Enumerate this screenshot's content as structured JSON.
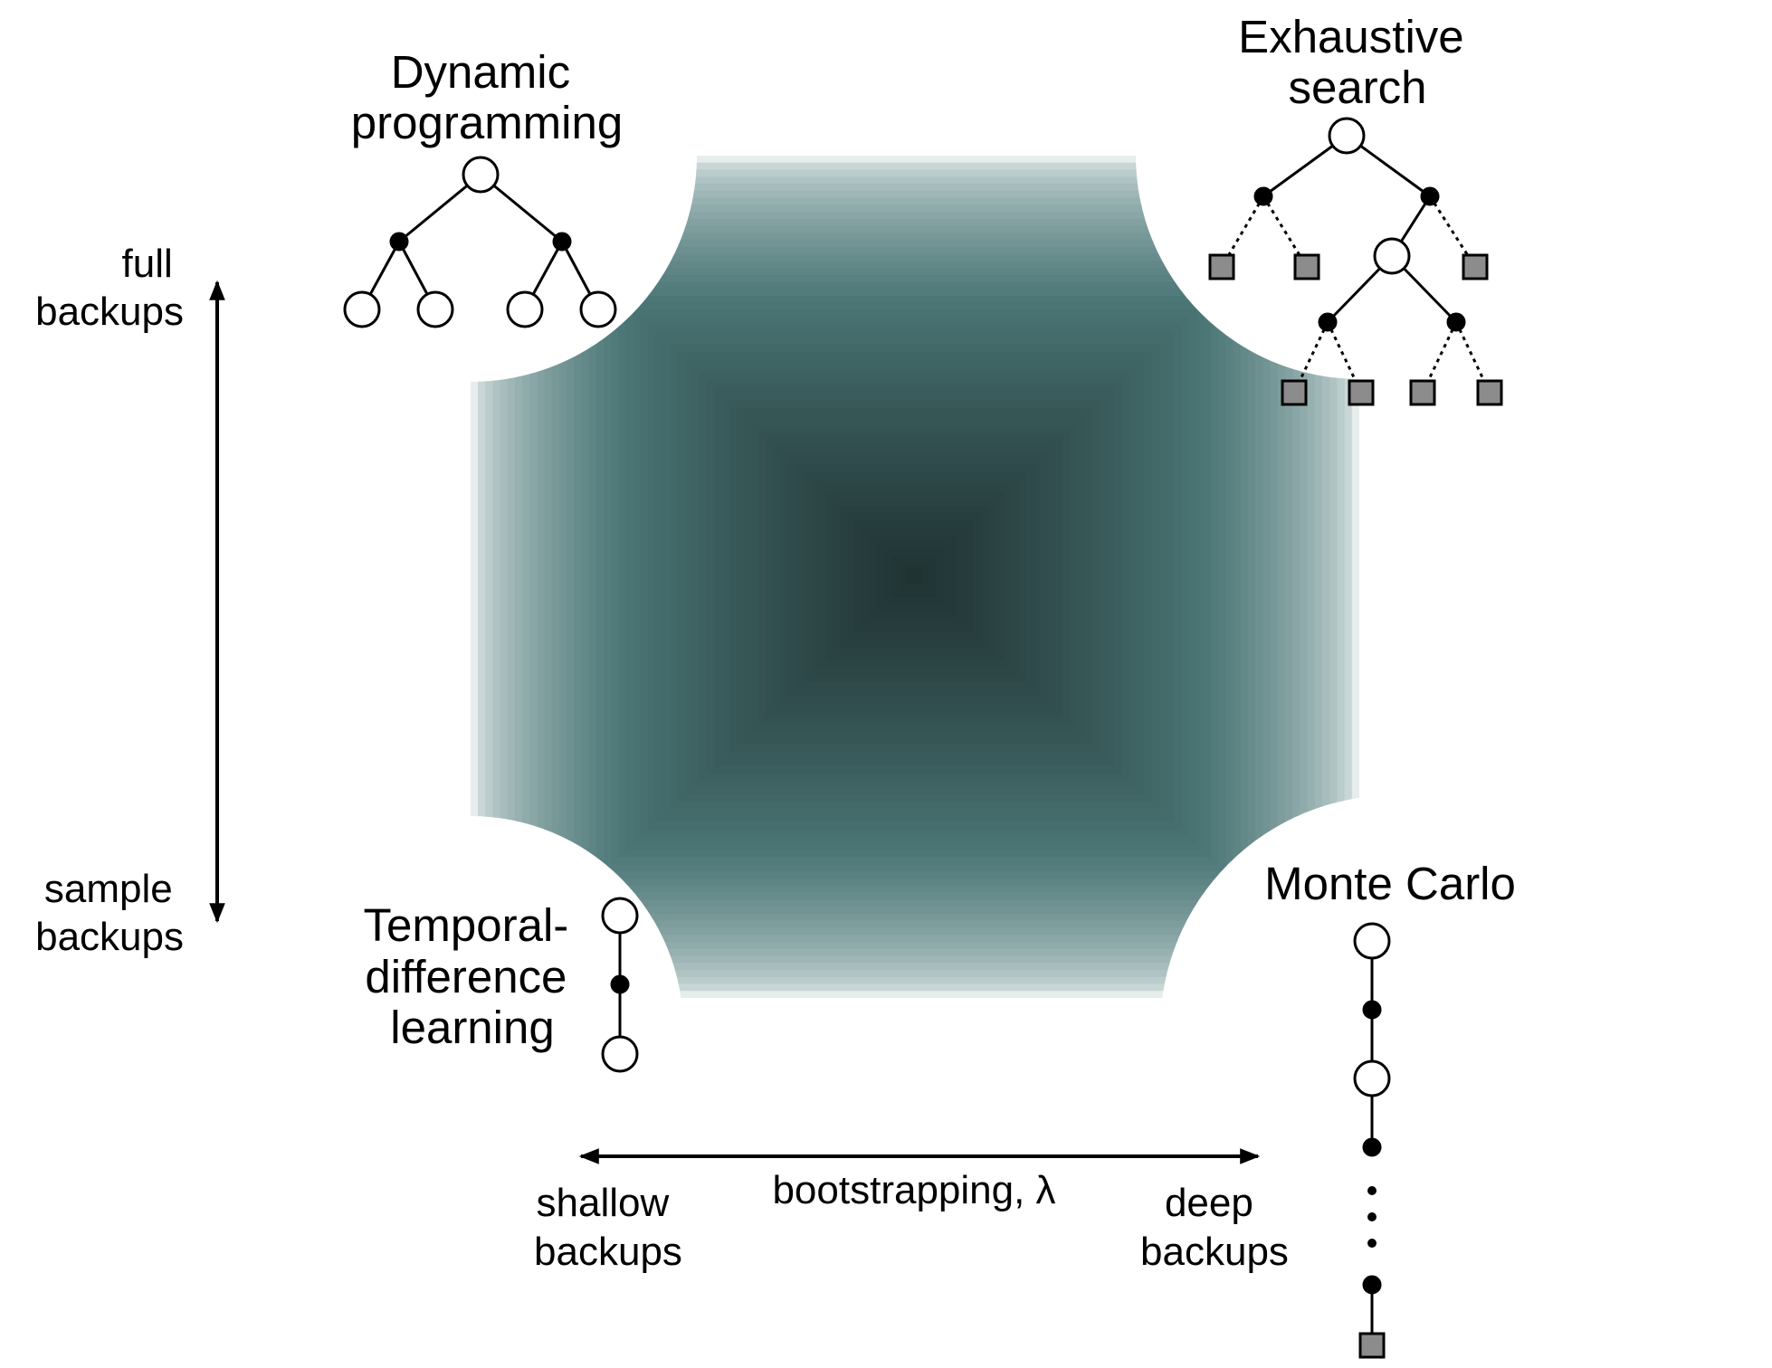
{
  "labels": {
    "dynamic_programming": [
      "Dynamic",
      "programming"
    ],
    "exhaustive_search": [
      "Exhaustive",
      "search"
    ],
    "temporal_difference": [
      "Temporal-",
      "difference",
      "learning"
    ],
    "monte_carlo": "Monte Carlo",
    "full_backups": [
      "full",
      "backups"
    ],
    "sample_backups": [
      "sample",
      "backups"
    ],
    "shallow_backups": [
      "shallow",
      "backups"
    ],
    "deep_backups": [
      "deep",
      "backups"
    ],
    "bootstrapping": "bootstrapping, λ"
  },
  "colors": {
    "shade_outer": "#e6eded",
    "shade_mid": "#4c7676",
    "shade_center": "#1f3232",
    "line": "#000000",
    "terminal_fill": "#8c8c8c",
    "background": "#ffffff"
  }
}
